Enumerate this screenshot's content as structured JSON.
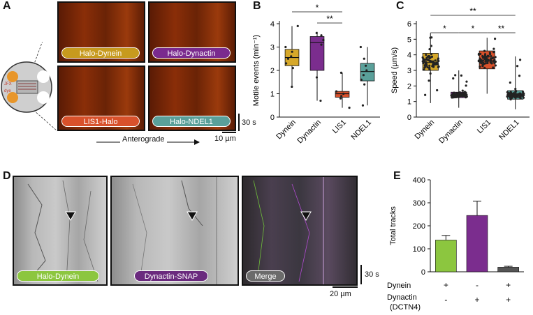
{
  "panels": {
    "A": {
      "label": "A",
      "dish": {
        "jfx": "JFX",
        "dye": "dye"
      },
      "tiles": [
        "Halo-Dynein",
        "Halo-Dynactin",
        "LIS1-Halo",
        "Halo-NDEL1"
      ],
      "tile_colors": [
        "#c79a1e",
        "#7a2a8e",
        "#d8512b",
        "#5aa09a"
      ],
      "time_scale": "30 s",
      "space_scale": "10 µm",
      "direction": "Anterograde"
    },
    "B": {
      "label": "B",
      "ylabel": "Motile events (min⁻¹)",
      "yticks": [
        "0",
        "1",
        "2",
        "3",
        "4"
      ],
      "categories": [
        "Dynein",
        "Dynactin",
        "LIS1",
        "NDEL1"
      ],
      "sig": [
        "*",
        "**"
      ]
    },
    "C": {
      "label": "C",
      "ylabel": "Speed (µm/s)",
      "yticks": [
        "0",
        "1",
        "2",
        "3",
        "4",
        "5",
        "6"
      ],
      "categories": [
        "Dynein",
        "Dynactin",
        "LIS1",
        "NDEL1"
      ],
      "sig": [
        "**",
        "*",
        "*",
        "**"
      ]
    },
    "D": {
      "label": "D",
      "tiles": [
        "Halo-Dynein",
        "Dynactin-SNAP",
        "Merge"
      ],
      "tile_colors": [
        "#8cc63f",
        "#6a2a7e",
        "#6b6b6b"
      ],
      "time_scale": "30 s",
      "space_scale": "20 µm"
    },
    "E": {
      "label": "E",
      "ylabel": "Total tracks",
      "yticks": [
        "0",
        "100",
        "200",
        "300",
        "400"
      ],
      "row_labels": [
        "Dynein",
        "Dynactin",
        "(DCTN4)"
      ],
      "dynein_row": [
        "+",
        "-",
        "+"
      ],
      "dynactin_row": [
        "-",
        "+",
        "+"
      ]
    }
  },
  "chart_data": [
    {
      "type": "box",
      "panel": "B",
      "ylabel": "Motile events (min⁻¹)",
      "ylim": [
        0,
        4
      ],
      "categories": [
        "Dynein",
        "Dynactin",
        "LIS1",
        "NDEL1"
      ],
      "colors": [
        "#d6a82a",
        "#7b2d8e",
        "#d8512b",
        "#5aa09a"
      ],
      "boxes": [
        {
          "min": 1.3,
          "q1": 2.2,
          "median": 2.55,
          "q3": 2.9,
          "max": 3.9
        },
        {
          "min": 0.7,
          "q1": 2.0,
          "median": 3.2,
          "q3": 3.45,
          "max": 3.65
        },
        {
          "min": 0.4,
          "q1": 0.85,
          "median": 1.0,
          "q3": 1.1,
          "max": 1.9
        },
        {
          "min": 0.5,
          "q1": 1.55,
          "median": 1.95,
          "q3": 2.3,
          "max": 3.0
        }
      ],
      "points": [
        [
          1.3,
          2.1,
          2.3,
          2.5,
          2.6,
          2.8,
          3.0,
          3.9
        ],
        [
          0.7,
          1.7,
          3.1,
          3.3,
          3.5,
          3.6
        ],
        [
          0.4,
          0.8,
          0.9,
          1.0,
          1.1,
          1.9
        ],
        [
          0.5,
          1.4,
          1.6,
          1.8,
          2.0,
          2.2,
          2.5,
          3.0
        ]
      ],
      "significance": [
        {
          "from": 0,
          "to": 2,
          "label": "*"
        },
        {
          "from": 1,
          "to": 2,
          "label": "**"
        }
      ]
    },
    {
      "type": "box",
      "panel": "C",
      "ylabel": "Speed (µm/s)",
      "ylim": [
        0,
        6
      ],
      "categories": [
        "Dynein",
        "Dynactin",
        "LIS1",
        "NDEL1"
      ],
      "colors": [
        "#d6a82a",
        "#7b2d8e",
        "#d8512b",
        "#5aa09a"
      ],
      "boxes": [
        {
          "min": 0.9,
          "q1": 3.0,
          "median": 3.5,
          "q3": 4.1,
          "max": 5.4
        },
        {
          "min": 0.6,
          "q1": 1.25,
          "median": 1.4,
          "q3": 1.6,
          "max": 3.0
        },
        {
          "min": 1.5,
          "q1": 3.1,
          "median": 3.6,
          "q3": 4.25,
          "max": 5.1
        },
        {
          "min": 0.5,
          "q1": 1.15,
          "median": 1.4,
          "q3": 1.7,
          "max": 3.9
        }
      ],
      "significance": [
        {
          "from": 0,
          "to": 3,
          "label": "**"
        },
        {
          "from": 0,
          "to": 1,
          "label": "*"
        },
        {
          "from": 1,
          "to": 2,
          "label": "*"
        },
        {
          "from": 2,
          "to": 3,
          "label": "**"
        }
      ]
    },
    {
      "type": "bar",
      "panel": "E",
      "ylabel": "Total tracks",
      "ylim": [
        0,
        400
      ],
      "values": [
        138,
        245,
        20
      ],
      "errors": [
        20,
        62,
        4
      ],
      "colors": [
        "#8cc63f",
        "#7b2d8e",
        "#555555"
      ]
    }
  ]
}
